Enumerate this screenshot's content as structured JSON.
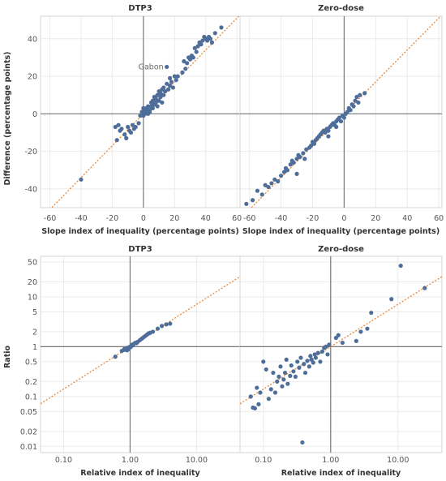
{
  "colors": {
    "point": "#4e6d99",
    "fit_line": "#e8873a",
    "zero_line": "#7a7a7a",
    "grid": "#ebebeb"
  },
  "chart_data": [
    {
      "panel_id": "top-left",
      "type": "scatter",
      "title": "DTP3",
      "xlabel": "Slope index of inequality (percentage points)",
      "ylabel": "Difference (percentage points)",
      "x_scale": "linear",
      "y_scale": "linear",
      "xlim": [
        -66,
        62
      ],
      "ylim": [
        -50,
        52
      ],
      "x_ticks": [
        -60,
        -40,
        -20,
        0,
        20,
        40,
        60
      ],
      "x_tick_labels": [
        "-60",
        "-40",
        "-20",
        "0",
        "20",
        "40",
        "60"
      ],
      "y_ticks": [
        -40,
        -20,
        0,
        20,
        40
      ],
      "y_tick_labels": [
        "-40",
        "-20",
        "0",
        "20",
        "40"
      ],
      "reference_lines": {
        "x": 0,
        "y": 0
      },
      "fit_line": {
        "slope": 0.85,
        "intercept": 0
      },
      "grid": true,
      "annotations": [
        {
          "text": "Gabon",
          "x": 15,
          "y": 25
        }
      ],
      "points": [
        [
          -40,
          -35
        ],
        [
          -18,
          -7
        ],
        [
          -17,
          -14
        ],
        [
          -16,
          -6
        ],
        [
          -15,
          -9
        ],
        [
          -14,
          -8
        ],
        [
          -12,
          -11
        ],
        [
          -11,
          -13
        ],
        [
          -10,
          -7
        ],
        [
          -9,
          -9
        ],
        [
          -8,
          -10
        ],
        [
          -7,
          -6
        ],
        [
          -6,
          -8
        ],
        [
          -5,
          -7
        ],
        [
          -3,
          -5
        ],
        [
          -2,
          -1
        ],
        [
          -1,
          1
        ],
        [
          0,
          3
        ],
        [
          0,
          -1
        ],
        [
          1,
          0
        ],
        [
          1,
          2
        ],
        [
          2,
          1
        ],
        [
          2,
          3
        ],
        [
          3,
          0
        ],
        [
          3,
          4
        ],
        [
          4,
          1
        ],
        [
          4,
          2
        ],
        [
          5,
          4
        ],
        [
          5,
          6
        ],
        [
          6,
          3
        ],
        [
          6,
          7
        ],
        [
          7,
          5
        ],
        [
          7,
          9
        ],
        [
          8,
          6
        ],
        [
          8,
          8
        ],
        [
          9,
          10
        ],
        [
          9,
          4
        ],
        [
          10,
          7
        ],
        [
          10,
          12
        ],
        [
          11,
          9
        ],
        [
          11,
          11
        ],
        [
          12,
          13
        ],
        [
          12,
          6
        ],
        [
          13,
          10
        ],
        [
          13,
          14
        ],
        [
          14,
          12
        ],
        [
          15,
          16
        ],
        [
          15,
          25
        ],
        [
          16,
          13
        ],
        [
          17,
          15
        ],
        [
          17,
          19
        ],
        [
          18,
          17
        ],
        [
          19,
          14
        ],
        [
          20,
          20
        ],
        [
          21,
          18
        ],
        [
          22,
          20
        ],
        [
          25,
          22
        ],
        [
          26,
          28
        ],
        [
          27,
          24
        ],
        [
          28,
          27
        ],
        [
          29,
          30
        ],
        [
          30,
          29
        ],
        [
          31,
          31
        ],
        [
          32,
          30
        ],
        [
          33,
          35
        ],
        [
          34,
          33
        ],
        [
          35,
          36
        ],
        [
          36,
          38
        ],
        [
          37,
          37
        ],
        [
          38,
          39
        ],
        [
          39,
          41
        ],
        [
          40,
          40
        ],
        [
          41,
          39
        ],
        [
          42,
          41
        ],
        [
          43,
          40
        ],
        [
          44,
          38
        ],
        [
          46,
          43
        ],
        [
          50,
          46
        ]
      ]
    },
    {
      "panel_id": "top-right",
      "type": "scatter",
      "title": "Zero-dose",
      "xlabel": "Slope index of inequality (percentage points)",
      "ylabel": "",
      "x_scale": "linear",
      "y_scale": "linear",
      "xlim": [
        -66,
        62
      ],
      "ylim": [
        -50,
        52
      ],
      "x_ticks": [
        -60,
        -40,
        -20,
        0,
        20,
        40,
        60
      ],
      "x_tick_labels": [
        "-60",
        "-40",
        "-20",
        "0",
        "20",
        "40",
        "60"
      ],
      "y_ticks": [],
      "y_tick_labels": [],
      "reference_lines": {
        "x": 0,
        "y": 0
      },
      "fit_line": {
        "slope": 0.85,
        "intercept": 0
      },
      "grid": true,
      "points": [
        [
          -62,
          -48
        ],
        [
          -58,
          -46
        ],
        [
          -55,
          -41
        ],
        [
          -52,
          -43
        ],
        [
          -50,
          -38
        ],
        [
          -48,
          -39
        ],
        [
          -46,
          -37
        ],
        [
          -44,
          -35
        ],
        [
          -42,
          -36
        ],
        [
          -40,
          -33
        ],
        [
          -38,
          -31
        ],
        [
          -37,
          -29
        ],
        [
          -36,
          -30
        ],
        [
          -34,
          -27
        ],
        [
          -33,
          -25
        ],
        [
          -32,
          -26
        ],
        [
          -30,
          -24
        ],
        [
          -29,
          -22
        ],
        [
          -28,
          -23
        ],
        [
          -26,
          -21
        ],
        [
          -25,
          -24
        ],
        [
          -24,
          -19
        ],
        [
          -22,
          -18
        ],
        [
          -21,
          -17
        ],
        [
          -20,
          -15
        ],
        [
          -19,
          -16
        ],
        [
          -18,
          -14
        ],
        [
          -17,
          -13
        ],
        [
          -16,
          -12
        ],
        [
          -15,
          -11
        ],
        [
          -14,
          -10
        ],
        [
          -13,
          -9
        ],
        [
          -12,
          -10
        ],
        [
          -11,
          -8
        ],
        [
          -10,
          -9
        ],
        [
          -9,
          -7
        ],
        [
          -8,
          -6
        ],
        [
          -7,
          -5
        ],
        [
          -6,
          -6
        ],
        [
          -5,
          -4
        ],
        [
          -4,
          -3
        ],
        [
          -3,
          -2
        ],
        [
          -2,
          -4
        ],
        [
          -1,
          -1
        ],
        [
          0,
          -2
        ],
        [
          1,
          0
        ],
        [
          2,
          1
        ],
        [
          3,
          3
        ],
        [
          4,
          2
        ],
        [
          5,
          5
        ],
        [
          6,
          4
        ],
        [
          7,
          7
        ],
        [
          8,
          9
        ],
        [
          9,
          6
        ],
        [
          10,
          10
        ],
        [
          13,
          11
        ],
        [
          -30,
          -32
        ],
        [
          -10,
          -12
        ],
        [
          -5,
          -7
        ]
      ]
    },
    {
      "panel_id": "bottom-left",
      "type": "scatter",
      "title": "DTP3",
      "xlabel": "Relative index of inequality",
      "ylabel": "Ratio",
      "x_scale": "log",
      "y_scale": "log",
      "xlim": [
        0.045,
        45
      ],
      "ylim": [
        0.0075,
        65
      ],
      "x_ticks": [
        0.1,
        1,
        10
      ],
      "x_tick_labels": [
        "0.10",
        "1.00",
        "10.00"
      ],
      "y_ticks": [
        0.01,
        0.02,
        0.05,
        0.1,
        0.2,
        0.5,
        1,
        2,
        5,
        10,
        20,
        50
      ],
      "y_tick_labels": [
        "0.01",
        "0.02",
        "0.05",
        "0.1",
        "0.2",
        "0.5",
        "1",
        "2",
        "5",
        "10",
        "20",
        "50"
      ],
      "reference_lines": {
        "x": 1,
        "y": 1
      },
      "fit_line": {
        "slope_log": 0.85,
        "intercept_log": 0
      },
      "grid": true,
      "points": [
        [
          0.6,
          0.63
        ],
        [
          0.75,
          0.82
        ],
        [
          0.8,
          0.86
        ],
        [
          0.82,
          0.9
        ],
        [
          0.85,
          0.88
        ],
        [
          0.88,
          0.93
        ],
        [
          0.9,
          0.85
        ],
        [
          0.92,
          0.95
        ],
        [
          0.95,
          0.9
        ],
        [
          0.97,
          0.97
        ],
        [
          1.0,
          1.0
        ],
        [
          1.02,
          0.98
        ],
        [
          1.05,
          1.05
        ],
        [
          1.08,
          1.1
        ],
        [
          1.1,
          1.07
        ],
        [
          1.15,
          1.15
        ],
        [
          1.2,
          1.2
        ],
        [
          1.25,
          1.18
        ],
        [
          1.3,
          1.25
        ],
        [
          1.4,
          1.35
        ],
        [
          1.5,
          1.45
        ],
        [
          1.6,
          1.55
        ],
        [
          1.7,
          1.65
        ],
        [
          1.8,
          1.75
        ],
        [
          1.9,
          1.85
        ],
        [
          2.0,
          1.9
        ],
        [
          2.2,
          2.0
        ],
        [
          2.6,
          2.3
        ],
        [
          3.0,
          2.6
        ],
        [
          3.5,
          2.8
        ],
        [
          4.0,
          2.9
        ]
      ]
    },
    {
      "panel_id": "bottom-right",
      "type": "scatter",
      "title": "Zero-dose",
      "xlabel": "Relative index of inequality",
      "ylabel": "",
      "x_scale": "log",
      "y_scale": "log",
      "xlim": [
        0.045,
        45
      ],
      "ylim": [
        0.0075,
        65
      ],
      "x_ticks": [
        0.1,
        1,
        10
      ],
      "x_tick_labels": [
        "0.10",
        "1.00",
        "10.00"
      ],
      "y_ticks": [],
      "y_tick_labels": [],
      "reference_lines": {
        "x": 1,
        "y": 1
      },
      "fit_line": {
        "slope_log": 0.85,
        "intercept_log": 0
      },
      "grid": true,
      "points": [
        [
          0.065,
          0.1
        ],
        [
          0.07,
          0.06
        ],
        [
          0.075,
          0.058
        ],
        [
          0.08,
          0.15
        ],
        [
          0.085,
          0.07
        ],
        [
          0.09,
          0.12
        ],
        [
          0.1,
          0.5
        ],
        [
          0.11,
          0.35
        ],
        [
          0.12,
          0.09
        ],
        [
          0.13,
          0.14
        ],
        [
          0.14,
          0.3
        ],
        [
          0.15,
          0.12
        ],
        [
          0.16,
          0.2
        ],
        [
          0.17,
          0.25
        ],
        [
          0.18,
          0.4
        ],
        [
          0.19,
          0.16
        ],
        [
          0.2,
          0.22
        ],
        [
          0.21,
          0.3
        ],
        [
          0.22,
          0.55
        ],
        [
          0.23,
          0.18
        ],
        [
          0.25,
          0.26
        ],
        [
          0.26,
          0.42
        ],
        [
          0.28,
          0.32
        ],
        [
          0.3,
          0.25
        ],
        [
          0.32,
          0.5
        ],
        [
          0.34,
          0.38
        ],
        [
          0.36,
          0.6
        ],
        [
          0.38,
          0.012
        ],
        [
          0.4,
          0.45
        ],
        [
          0.42,
          0.3
        ],
        [
          0.45,
          0.52
        ],
        [
          0.48,
          0.4
        ],
        [
          0.5,
          0.65
        ],
        [
          0.52,
          0.55
        ],
        [
          0.55,
          0.48
        ],
        [
          0.58,
          0.7
        ],
        [
          0.6,
          0.6
        ],
        [
          0.65,
          0.75
        ],
        [
          0.7,
          0.5
        ],
        [
          0.75,
          0.8
        ],
        [
          0.8,
          0.95
        ],
        [
          0.85,
          1.0
        ],
        [
          0.9,
          0.7
        ],
        [
          0.95,
          1.1
        ],
        [
          1.2,
          1.5
        ],
        [
          1.3,
          1.7
        ],
        [
          1.5,
          1.2
        ],
        [
          2.4,
          1.3
        ],
        [
          2.8,
          2.0
        ],
        [
          3.5,
          2.3
        ],
        [
          4.0,
          4.8
        ],
        [
          8.0,
          9.0
        ],
        [
          11.0,
          42.0
        ],
        [
          25.0,
          15.0
        ]
      ]
    }
  ]
}
